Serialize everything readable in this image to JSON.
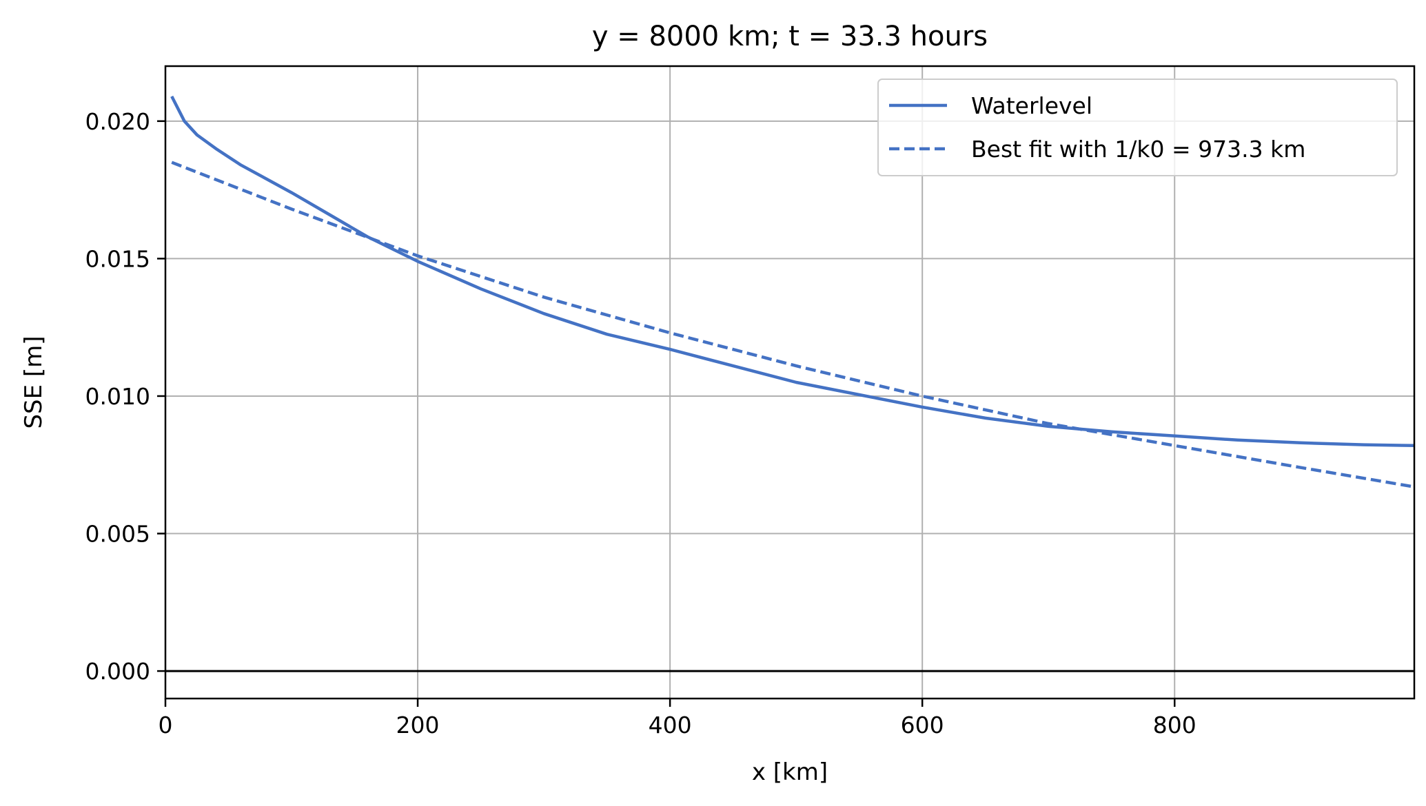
{
  "chart_data": {
    "type": "line",
    "title": "y = 8000 km; t = 33.3 hours",
    "xlabel": "x [km]",
    "ylabel": "SSE [m]",
    "xlim": [
      0,
      990
    ],
    "ylim": [
      -0.001,
      0.022
    ],
    "xticks": [
      0,
      200,
      400,
      600,
      800
    ],
    "xtick_labels": [
      "0",
      "200",
      "400",
      "600",
      "800"
    ],
    "yticks": [
      0.0,
      0.005,
      0.01,
      0.015,
      0.02
    ],
    "ytick_labels": [
      "0.000",
      "0.005",
      "0.010",
      "0.015",
      "0.020"
    ],
    "grid": true,
    "legend_position": "top-right",
    "horizontal_line": 0,
    "series": [
      {
        "name": "Waterlevel",
        "style": "solid",
        "color": "#4472c4",
        "x": [
          5,
          15,
          25,
          40,
          60,
          80,
          100,
          130,
          160,
          200,
          250,
          300,
          350,
          400,
          450,
          500,
          550,
          600,
          650,
          700,
          750,
          800,
          850,
          900,
          950,
          990
        ],
        "y": [
          0.0209,
          0.02,
          0.0195,
          0.019,
          0.0184,
          0.0179,
          0.0174,
          0.0166,
          0.0158,
          0.0149,
          0.0139,
          0.013,
          0.01225,
          0.0117,
          0.0111,
          0.0105,
          0.01005,
          0.0096,
          0.0092,
          0.0089,
          0.0087,
          0.00855,
          0.0084,
          0.0083,
          0.00823,
          0.0082
        ]
      },
      {
        "name": "Best fit with 1/k0 = 973.3 km",
        "style": "dashed",
        "color": "#4472c4",
        "x": [
          5,
          100,
          200,
          300,
          400,
          500,
          600,
          700,
          800,
          900,
          990
        ],
        "y": [
          0.0185,
          0.0168,
          0.0151,
          0.0136,
          0.0123,
          0.0111,
          0.01,
          0.009,
          0.0082,
          0.0074,
          0.0067
        ]
      }
    ]
  }
}
